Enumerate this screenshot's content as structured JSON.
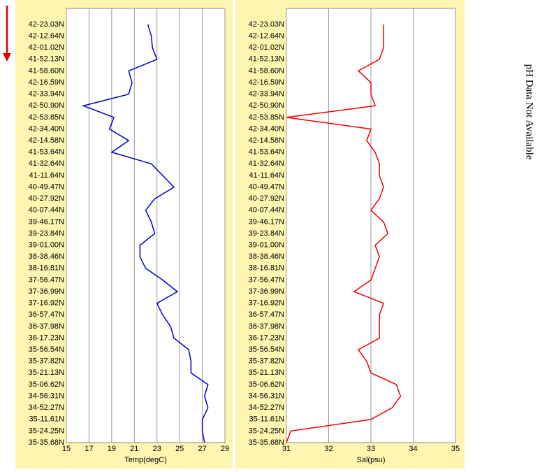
{
  "chart_data": [
    {
      "type": "line",
      "x_label": "Temp(degC)",
      "categories": [
        "42-23.03N",
        "42-12.64N",
        "42-01.02N",
        "41-52.13N",
        "41-58.60N",
        "42-16.59N",
        "42-33.94N",
        "42-50.90N",
        "42-53.85N",
        "42-34.40N",
        "42-14.58N",
        "41-53.64N",
        "41-32.64N",
        "41-11.64N",
        "40-49.47N",
        "40-27.92N",
        "40-07.44N",
        "39-46.17N",
        "39-23.84N",
        "39-01.00N",
        "38-38.46N",
        "38-16.81N",
        "37-56.47N",
        "37-36.99N",
        "37-16.92N",
        "36-57.47N",
        "36-37.98N",
        "36-17.23N",
        "35-56.54N",
        "35-37.82N",
        "35-21.13N",
        "35-06.62N",
        "34-56.31N",
        "34-52.27N",
        "35-11.61N",
        "35-24.25N",
        "35-35.68N"
      ],
      "values": [
        22.2,
        22.5,
        22.6,
        23.0,
        20.5,
        20.8,
        20.5,
        16.5,
        19.2,
        18.8,
        20.5,
        19.0,
        22.5,
        23.5,
        24.5,
        22.8,
        22.0,
        22.5,
        22.8,
        21.5,
        21.5,
        22.0,
        23.5,
        24.8,
        23.0,
        23.5,
        24.2,
        24.5,
        25.8,
        26.0,
        26.0,
        27.5,
        27.2,
        27.5,
        27.0,
        27.0,
        27.2
      ],
      "color": "#0000cc",
      "xlim": [
        15,
        29
      ],
      "xticks": [
        15,
        17,
        19,
        21,
        23,
        25,
        27,
        29
      ],
      "grid": true
    },
    {
      "type": "line",
      "x_label": "Sal(psu)",
      "categories": [
        "42-23.03N",
        "42-12.64N",
        "42-01.02N",
        "41-52.13N",
        "41-58.60N",
        "42-16.59N",
        "42-33.94N",
        "42-50.90N",
        "42-53.85N",
        "42-34.40N",
        "42-14.58N",
        "41-53.64N",
        "41-32.64N",
        "41-11.64N",
        "40-49.47N",
        "40-27.92N",
        "40-07.44N",
        "39-46.17N",
        "39-23.84N",
        "39-01.00N",
        "38-38.46N",
        "38-16.81N",
        "37-56.47N",
        "37-36.99N",
        "37-16.92N",
        "36-57.47N",
        "36-37.98N",
        "36-17.23N",
        "35-56.54N",
        "35-37.82N",
        "35-21.13N",
        "35-06.62N",
        "34-56.31N",
        "34-52.27N",
        "35-11.61N",
        "35-24.25N",
        "35-35.68N"
      ],
      "values": [
        33.3,
        33.3,
        33.3,
        33.2,
        32.7,
        33.0,
        33.0,
        33.1,
        31.0,
        33.0,
        32.9,
        33.1,
        33.2,
        33.2,
        33.3,
        33.2,
        33.0,
        33.3,
        33.4,
        33.1,
        33.2,
        33.1,
        33.0,
        32.6,
        33.3,
        33.2,
        33.2,
        33.2,
        32.7,
        32.9,
        33.0,
        33.6,
        33.7,
        33.5,
        33.0,
        31.1,
        31.0
      ],
      "color": "#ee0000",
      "xlim": [
        31,
        35
      ],
      "xticks": [
        31,
        32,
        33,
        34,
        35
      ],
      "grid": true
    }
  ],
  "note": "pH Data Not Available"
}
